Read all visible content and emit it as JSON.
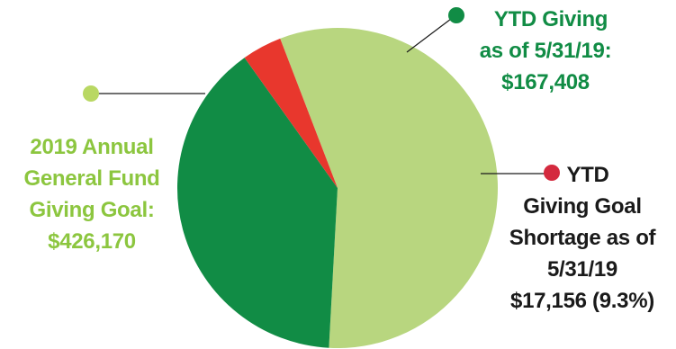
{
  "chart_data": {
    "type": "pie",
    "slices": [
      {
        "key": "goal",
        "value": 241606,
        "color": "#b8d67f",
        "dot_color": "#b9d863",
        "label_color": "#8cc63f",
        "label_lines": [
          "2019 Annual",
          "General Fund",
          "Giving Goal:",
          "$426,170"
        ]
      },
      {
        "key": "ytd",
        "value": 167408,
        "color": "#118c45",
        "dot_color": "#118c45",
        "label_color": "#118c45",
        "label_lines": [
          "YTD Giving",
          "as of 5/31/19:",
          "$167,408"
        ]
      },
      {
        "key": "shortage",
        "value": 17156,
        "color": "#e8372d",
        "dot_color": "#d42a3e",
        "label_color": "#1a1a1a",
        "label_lines": [
          "YTD",
          "Giving Goal",
          "Shortage as of",
          "5/31/19",
          "$17,156 (9.3%)"
        ]
      }
    ]
  }
}
